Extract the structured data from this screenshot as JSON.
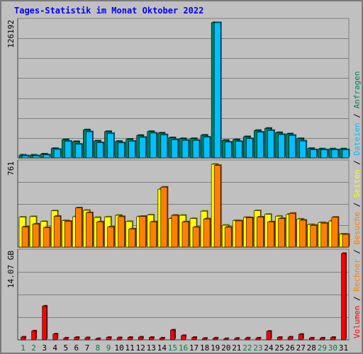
{
  "chart_data": {
    "type": "bar",
    "title": "Tages-Statistik im Monat Oktober 2022",
    "categories": [
      "1",
      "2",
      "3",
      "4",
      "5",
      "6",
      "7",
      "8",
      "9",
      "10",
      "11",
      "12",
      "13",
      "14",
      "15",
      "16",
      "17",
      "18",
      "19",
      "20",
      "21",
      "22",
      "23",
      "24",
      "25",
      "26",
      "27",
      "28",
      "29",
      "30",
      "31"
    ],
    "weekend_days": [
      1,
      2,
      8,
      9,
      15,
      16,
      22,
      23,
      29,
      30
    ],
    "colors": {
      "anfragen": "#008060",
      "dateien": "#00c0ff",
      "seiten": "#ffff00",
      "besuche": "#ff8000",
      "rechner": "#ff8000",
      "volumen": "#ff0000",
      "weekday_tick": "#000000",
      "weekend_tick": "#008040",
      "title": "#0000ff"
    },
    "panels": [
      {
        "id": "hits",
        "ymax": 126192,
        "ymax_label": "126192",
        "series": [
          {
            "name": "Anfragen",
            "key": "anfragen",
            "values": [
              2600,
              2600,
              3600,
              8800,
              17000,
              15200,
              26200,
              15800,
              24600,
              15400,
              17400,
              21000,
              24600,
              23200,
              18800,
              18000,
              18000,
              21200,
              126192,
              16400,
              17000,
              19800,
              25600,
              27600,
              23600,
              22400,
              18000,
              8800,
              8400,
              8400,
              8400
            ]
          },
          {
            "name": "Dateien",
            "key": "dateien",
            "values": [
              2000,
              2000,
              2800,
              8000,
              15600,
              12800,
              24400,
              14200,
              22800,
              14000,
              15600,
              19200,
              23200,
              21600,
              17000,
              16400,
              16400,
              19400,
              126192,
              14800,
              15400,
              18000,
              24000,
              25600,
              21800,
              21000,
              15800,
              7600,
              7600,
              7600,
              7600
            ]
          }
        ]
      },
      {
        "id": "visits",
        "ymax": 761,
        "ymax_label": "761",
        "series": [
          {
            "name": "Seiten",
            "key": "seiten",
            "values": [
              275,
              280,
              235,
              333,
              244,
              279,
              338,
              272,
              277,
              292,
              235,
              280,
              296,
              532,
              262,
              292,
              262,
              330,
              761,
              201,
              244,
              273,
              335,
              301,
              284,
              300,
              258,
              207,
              226,
              240,
              120
            ]
          },
          {
            "name": "Besuche",
            "key": "besuche",
            "values": [
              185,
              212,
              179,
              283,
              237,
              360,
              316,
              232,
              184,
              280,
              167,
              282,
              232,
              551,
              292,
              232,
              183,
              259,
              750,
              183,
              241,
              269,
              276,
              232,
              263,
              310,
              247,
              200,
              220,
              274,
              117
            ]
          }
        ]
      },
      {
        "id": "volume",
        "ymax": 14.07,
        "ymax_label": "14.07 GB",
        "series": [
          {
            "name": "Volumen",
            "key": "volumen",
            "values": [
              0.45,
              1.45,
              5.5,
              0.95,
              0.3,
              0.4,
              0.35,
              0.2,
              0.4,
              0.35,
              0.4,
              0.45,
              0.4,
              0.3,
              1.6,
              0.7,
              0.4,
              0.25,
              0.3,
              0.2,
              0.25,
              0.3,
              0.3,
              1.4,
              0.4,
              0.45,
              0.9,
              0.3,
              0.3,
              0.4,
              14.07
            ]
          }
        ]
      }
    ],
    "legend": [
      {
        "text": "Volumen",
        "key": "volumen"
      },
      {
        "text": " / ",
        "key": "sep"
      },
      {
        "text": "Rechner",
        "key": "rechner"
      },
      {
        "text": " / ",
        "key": "sep"
      },
      {
        "text": "Besuche",
        "key": "besuche"
      },
      {
        "text": " / ",
        "key": "sep"
      },
      {
        "text": "Seiten",
        "key": "seiten"
      },
      {
        "text": " / ",
        "key": "sep"
      },
      {
        "text": "Dateien",
        "key": "dateien"
      },
      {
        "text": " / ",
        "key": "sep"
      },
      {
        "text": "Anfragen",
        "key": "anfragen"
      }
    ]
  }
}
